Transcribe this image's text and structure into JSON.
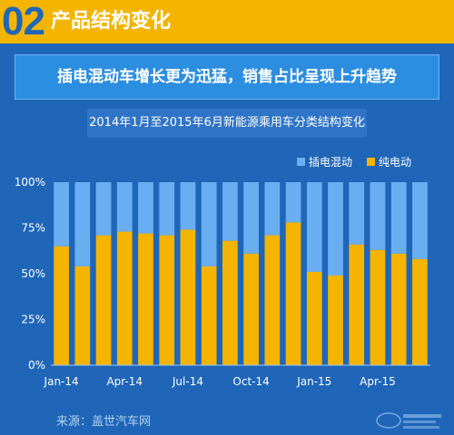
{
  "header": {
    "number": "02",
    "title": "产品结构变化"
  },
  "banner": {
    "text": "插电混动车增长更为迅猛，销售占比呈现上升趋势"
  },
  "source": {
    "text": "来源：盖世汽车网"
  },
  "colors": {
    "background": "#1f66b8",
    "header": "#f4b400",
    "phev": "#6aaef2",
    "bev": "#f4b400"
  },
  "chart_data": {
    "type": "bar",
    "stacked": true,
    "title": "2014年1月至2015年6月新能源乘用车分类结构变化",
    "categories": [
      "Jan-14",
      "Feb-14",
      "Mar-14",
      "Apr-14",
      "May-14",
      "Jun-14",
      "Jul-14",
      "Aug-14",
      "Sep-14",
      "Oct-14",
      "Nov-14",
      "Dec-14",
      "Jan-15",
      "Feb-15",
      "Mar-15",
      "Apr-15",
      "May-15",
      "Jun-15"
    ],
    "x_tick_labels": [
      "Jan-14",
      "Apr-14",
      "Jul-14",
      "Oct-14",
      "Jan-15",
      "Apr-15"
    ],
    "x_tick_indices": [
      0,
      3,
      6,
      9,
      12,
      15
    ],
    "y_ticks": [
      "0%",
      "25%",
      "50%",
      "75%",
      "100%"
    ],
    "ylim": [
      0,
      100
    ],
    "grid": false,
    "legend_position": "top-right",
    "series": [
      {
        "name": "纯电动",
        "color": "#f4b400",
        "values": [
          65,
          54,
          71,
          73,
          72,
          71,
          74,
          54,
          68,
          61,
          71,
          78,
          51,
          49,
          66,
          63,
          61,
          58
        ]
      },
      {
        "name": "插电混动",
        "color": "#6aaef2",
        "values": [
          35,
          46,
          29,
          27,
          28,
          29,
          26,
          46,
          32,
          39,
          29,
          22,
          49,
          51,
          34,
          37,
          39,
          42
        ]
      }
    ]
  }
}
